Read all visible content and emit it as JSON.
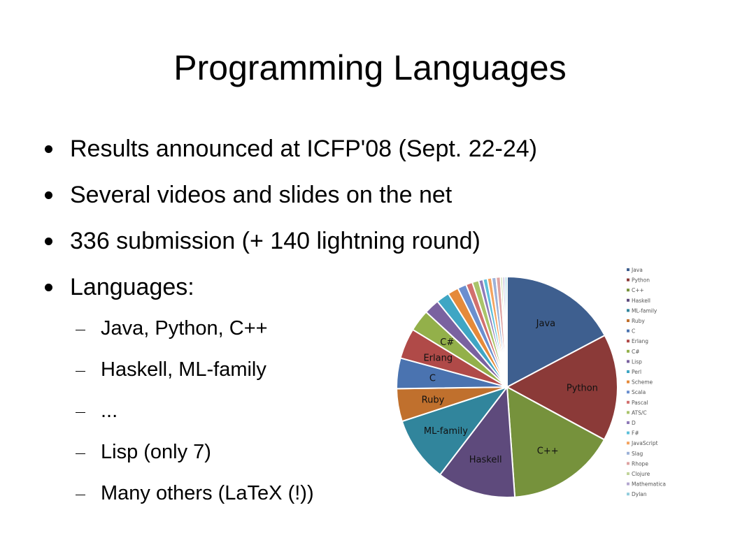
{
  "slide": {
    "title": "Programming Languages",
    "bullets": [
      "Results announced at ICFP'08 (Sept. 22-24)",
      "Several videos and slides on the net",
      "336 submission (+ 140 lightning round)",
      "Languages:"
    ],
    "sub_bullets": [
      "Java, Python, C++",
      "Haskell, ML-family",
      "...",
      "Lisp (only 7)",
      "Many others (LaTeX (!))"
    ]
  },
  "chart_data": {
    "type": "pie",
    "start_angle_deg": 0,
    "direction": "clockwise",
    "legend_position": "right",
    "series": [
      {
        "name": "Java",
        "value": 54,
        "color": "#3e5f8f",
        "label": "Java"
      },
      {
        "name": "Python",
        "value": 49,
        "color": "#8b3a38",
        "label": "Python"
      },
      {
        "name": "C++",
        "value": 50,
        "color": "#76923c",
        "label": "C++"
      },
      {
        "name": "Haskell",
        "value": 36,
        "color": "#5e4a7c",
        "label": "Haskell"
      },
      {
        "name": "ML-family",
        "value": 30,
        "color": "#31859c",
        "label": "ML-family"
      },
      {
        "name": "Ruby",
        "value": 15,
        "color": "#c0702d",
        "label": "Ruby"
      },
      {
        "name": "C",
        "value": 14,
        "color": "#4a73b0",
        "label": "C"
      },
      {
        "name": "Erlang",
        "value": 14,
        "color": "#b04a48",
        "label": "Erlang"
      },
      {
        "name": "C#",
        "value": 10,
        "color": "#93b04a",
        "label": "C#"
      },
      {
        "name": "Lisp",
        "value": 7,
        "color": "#7a62a0",
        "label": ""
      },
      {
        "name": "Perl",
        "value": 6,
        "color": "#3fa6c4",
        "label": ""
      },
      {
        "name": "Scheme",
        "value": 5,
        "color": "#e58a3a",
        "label": ""
      },
      {
        "name": "Scala",
        "value": 4,
        "color": "#6b8fcf",
        "label": ""
      },
      {
        "name": "Pascal",
        "value": 3,
        "color": "#d2706e",
        "label": ""
      },
      {
        "name": "ATS/C",
        "value": 3,
        "color": "#aac46a",
        "label": ""
      },
      {
        "name": "D",
        "value": 2,
        "color": "#8f7ab8",
        "label": ""
      },
      {
        "name": "F#",
        "value": 2,
        "color": "#5ec0da",
        "label": ""
      },
      {
        "name": "JavaScript",
        "value": 2,
        "color": "#f4a460",
        "label": ""
      },
      {
        "name": "Slag",
        "value": 2,
        "color": "#9db2d8",
        "label": ""
      },
      {
        "name": "Rhope",
        "value": 2,
        "color": "#dea3a2",
        "label": ""
      },
      {
        "name": "Clojure",
        "value": 1,
        "color": "#c2d59b",
        "label": ""
      },
      {
        "name": "Mathematica",
        "value": 1,
        "color": "#b4a7d0",
        "label": ""
      },
      {
        "name": "Dylan",
        "value": 1,
        "color": "#93cddd",
        "label": ""
      }
    ]
  }
}
